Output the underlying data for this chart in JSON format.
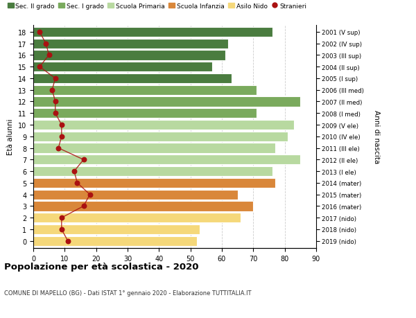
{
  "ages": [
    18,
    17,
    16,
    15,
    14,
    13,
    12,
    11,
    10,
    9,
    8,
    7,
    6,
    5,
    4,
    3,
    2,
    1,
    0
  ],
  "years": [
    "2001 (V sup)",
    "2002 (IV sup)",
    "2003 (III sup)",
    "2004 (II sup)",
    "2005 (I sup)",
    "2006 (III med)",
    "2007 (II med)",
    "2008 (I med)",
    "2009 (V ele)",
    "2010 (IV ele)",
    "2011 (III ele)",
    "2012 (II ele)",
    "2013 (I ele)",
    "2014 (mater)",
    "2015 (mater)",
    "2016 (mater)",
    "2017 (nido)",
    "2018 (nido)",
    "2019 (nido)"
  ],
  "bar_values": [
    76,
    62,
    61,
    57,
    63,
    71,
    85,
    71,
    83,
    81,
    77,
    85,
    76,
    77,
    65,
    70,
    66,
    53,
    52
  ],
  "stranieri": [
    2,
    4,
    5,
    2,
    7,
    6,
    7,
    7,
    9,
    9,
    8,
    16,
    13,
    14,
    18,
    16,
    9,
    9,
    11
  ],
  "bar_colors": [
    "#4a7c3f",
    "#4a7c3f",
    "#4a7c3f",
    "#4a7c3f",
    "#4a7c3f",
    "#7aaa5d",
    "#7aaa5d",
    "#7aaa5d",
    "#b8d9a0",
    "#b8d9a0",
    "#b8d9a0",
    "#b8d9a0",
    "#b8d9a0",
    "#d9873a",
    "#d9873a",
    "#d9873a",
    "#f5d87a",
    "#f5d87a",
    "#f5d87a"
  ],
  "legend_labels": [
    "Sec. II grado",
    "Sec. I grado",
    "Scuola Primaria",
    "Scuola Infanzia",
    "Asilo Nido",
    "Stranieri"
  ],
  "legend_colors": [
    "#4a7c3f",
    "#7aaa5d",
    "#b8d9a0",
    "#d9873a",
    "#f5d87a",
    "#aa1111"
  ],
  "ylabel": "Età alunni",
  "ylabel_right": "Anni di nascita",
  "title": "Popolazione per età scolastica - 2020",
  "subtitle": "COMUNE DI MAPELLO (BG) - Dati ISTAT 1° gennaio 2020 - Elaborazione TUTTITALIA.IT",
  "xlim": [
    0,
    90
  ],
  "xticks": [
    0,
    10,
    20,
    30,
    40,
    50,
    60,
    70,
    80,
    90
  ],
  "stranieri_color": "#aa1111",
  "bar_height": 0.85,
  "background_color": "#ffffff",
  "grid_color": "#cccccc"
}
